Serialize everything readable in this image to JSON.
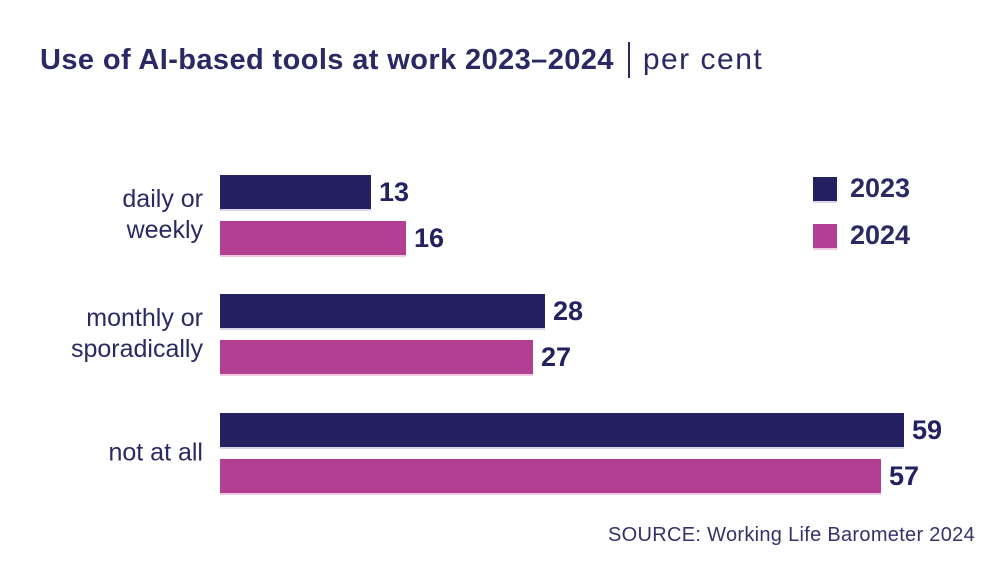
{
  "title": {
    "main": "Use of AI-based tools at work 2023–2024",
    "separator": "|",
    "unit": "per cent"
  },
  "source": "SOURCE: Working Life Barometer 2024",
  "colors": {
    "navy": "#242161",
    "magenta": "#b23f92",
    "text_navy": "#2b2963"
  },
  "chart_data": {
    "type": "bar",
    "orientation": "horizontal",
    "title": "Use of AI-based tools at work 2023–2024",
    "unit": "per cent",
    "categories": [
      [
        "daily or",
        "weekly"
      ],
      [
        "monthly or",
        "sporadically"
      ],
      [
        "not at all"
      ]
    ],
    "series": [
      {
        "name": "2023",
        "color": "#242161",
        "values": [
          13,
          28,
          59
        ]
      },
      {
        "name": "2024",
        "color": "#b23f92",
        "values": [
          16,
          27,
          57
        ]
      }
    ],
    "xlim": [
      0,
      59
    ],
    "grid": false,
    "value_labels": true,
    "legend_position": "top-right",
    "source": "SOURCE: Working Life Barometer 2024"
  }
}
